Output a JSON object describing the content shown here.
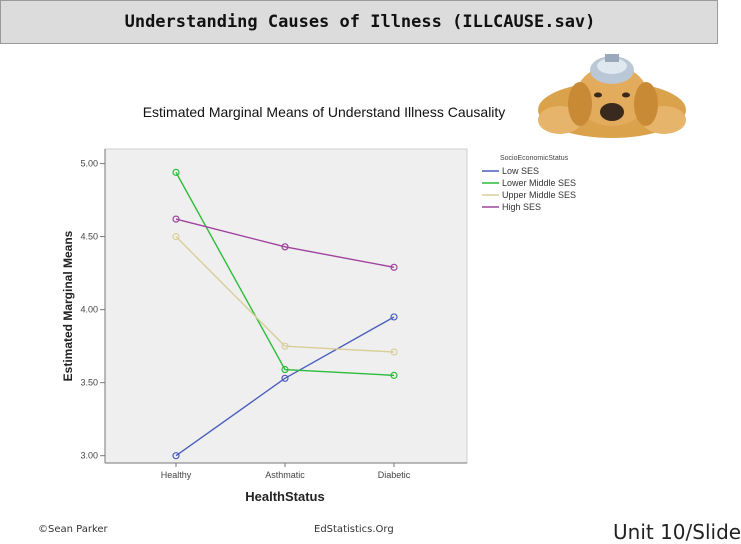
{
  "slide": {
    "title": "Understanding Causes of Illness (ILLCAUSE.sav)",
    "footer_left": "©Sean Parker",
    "footer_center": "EdStatistics.Org",
    "footer_right": "Unit 10/Slide"
  },
  "decor": {
    "image": "dog-with-ice-pack-icon"
  },
  "colors": {
    "plot_bg": "#efefef",
    "Low SES": "#4a5fbf",
    "Lower Middle SES": "#2dbd3a",
    "Upper Middle SES": "#d9cf9a",
    "High SES": "#a0439e"
  },
  "chart_data": {
    "type": "line",
    "title": "Estimated Marginal Means of Understand Illness Causality",
    "xlabel": "HealthStatus",
    "ylabel": "Estimated Marginal Means",
    "categories": [
      "Healthy",
      "Asthmatic",
      "Diabetic"
    ],
    "ylim": [
      2.95,
      5.1
    ],
    "yticks": [
      "3.00",
      "3.50",
      "4.00",
      "4.50",
      "5.00"
    ],
    "legend_title": "SocioEconomicStatus",
    "legend_position": "right",
    "grid": false,
    "series": [
      {
        "name": "Low SES",
        "values": [
          3.0,
          3.53,
          3.95
        ]
      },
      {
        "name": "Lower Middle SES",
        "values": [
          4.94,
          3.59,
          3.55
        ]
      },
      {
        "name": "Upper Middle SES",
        "values": [
          4.5,
          3.75,
          3.71
        ]
      },
      {
        "name": "High SES",
        "values": [
          4.62,
          4.43,
          4.29
        ]
      }
    ]
  }
}
